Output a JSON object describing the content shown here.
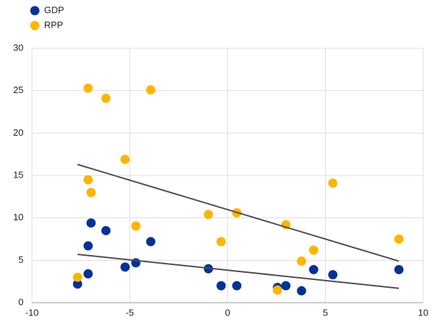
{
  "chart_data": {
    "type": "scatter",
    "xlim": [
      -10,
      10
    ],
    "xticks": [
      -10,
      -5,
      0,
      5,
      10
    ],
    "ylim": [
      0,
      30
    ],
    "yticks": [
      0,
      5,
      10,
      15,
      20,
      25,
      30
    ],
    "grid": true,
    "legend": "top-left",
    "series": [
      {
        "name": "GDP",
        "color": "#003299",
        "x": [
          -7.67,
          -7.13,
          -7.13,
          -6.98,
          -6.22,
          -5.24,
          -4.69,
          -3.93,
          -0.98,
          -0.33,
          0.47,
          2.55,
          2.98,
          3.78,
          4.4,
          5.38,
          8.76
        ],
        "values": [
          2.2,
          3.4,
          6.7,
          9.4,
          8.5,
          4.2,
          4.7,
          7.2,
          4.0,
          2.0,
          2.0,
          1.8,
          2.0,
          1.4,
          3.9,
          3.3,
          3.9
        ],
        "trend": {
          "x": [
            -7.67,
            8.76
          ],
          "values": [
            5.7,
            1.7
          ],
          "color": "#4d4d4d"
        }
      },
      {
        "name": "RPP",
        "color": "#ffb400",
        "x": [
          -7.67,
          -7.13,
          -7.13,
          -6.98,
          -6.22,
          -5.24,
          -4.69,
          -3.93,
          -0.98,
          -0.33,
          0.47,
          2.55,
          2.98,
          3.78,
          4.4,
          5.38,
          8.76
        ],
        "values": [
          3.0,
          25.3,
          14.5,
          13.0,
          24.1,
          16.9,
          9.05,
          25.1,
          10.4,
          7.2,
          10.6,
          1.5,
          9.2,
          4.9,
          6.2,
          14.1,
          7.5
        ],
        "trend": {
          "x": [
            -7.67,
            8.76
          ],
          "values": [
            16.3,
            4.9
          ],
          "color": "#4d4d4d"
        }
      }
    ]
  }
}
